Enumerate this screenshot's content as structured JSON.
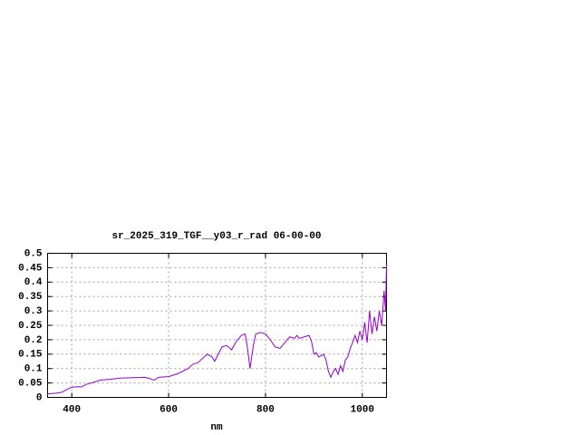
{
  "chart_data": {
    "type": "line",
    "title": "sr_2025_319_TGF__y03_r_rad 06-00-00",
    "xlabel": "nm",
    "x": [
      350,
      370,
      380,
      390,
      400,
      410,
      420,
      430,
      450,
      460,
      480,
      500,
      520,
      540,
      550,
      560,
      570,
      580,
      600,
      620,
      640,
      650,
      660,
      680,
      690,
      695,
      710,
      720,
      730,
      740,
      750,
      758,
      763,
      768,
      775,
      780,
      790,
      800,
      810,
      820,
      830,
      840,
      850,
      860,
      865,
      870,
      880,
      890,
      895,
      900,
      905,
      910,
      915,
      920,
      925,
      930,
      935,
      940,
      945,
      950,
      955,
      960,
      965,
      970,
      975,
      980,
      985,
      990,
      995,
      1000,
      1005,
      1010,
      1015,
      1020,
      1025,
      1030,
      1035,
      1040,
      1045,
      1048,
      1050
    ],
    "series": [
      {
        "name": "rad",
        "color": "#9400d3",
        "values": [
          0.012,
          0.015,
          0.018,
          0.028,
          0.035,
          0.037,
          0.036,
          0.045,
          0.055,
          0.06,
          0.063,
          0.067,
          0.068,
          0.069,
          0.07,
          0.066,
          0.06,
          0.07,
          0.072,
          0.083,
          0.1,
          0.115,
          0.12,
          0.15,
          0.14,
          0.125,
          0.175,
          0.18,
          0.165,
          0.195,
          0.215,
          0.22,
          0.17,
          0.1,
          0.18,
          0.22,
          0.225,
          0.22,
          0.2,
          0.175,
          0.17,
          0.19,
          0.21,
          0.205,
          0.215,
          0.205,
          0.21,
          0.215,
          0.195,
          0.15,
          0.155,
          0.14,
          0.145,
          0.15,
          0.13,
          0.09,
          0.07,
          0.09,
          0.1,
          0.08,
          0.11,
          0.09,
          0.13,
          0.14,
          0.17,
          0.19,
          0.215,
          0.19,
          0.23,
          0.2,
          0.26,
          0.19,
          0.3,
          0.22,
          0.28,
          0.23,
          0.3,
          0.25,
          0.37,
          0.3,
          0.46
        ]
      }
    ],
    "xlim": [
      350,
      1050
    ],
    "xticks": [
      400,
      600,
      800,
      1000
    ],
    "ylim": [
      0,
      0.5
    ],
    "yticks": [
      0,
      0.05,
      0.1,
      0.15,
      0.2,
      0.25,
      0.3,
      0.35,
      0.4,
      0.45,
      0.5
    ],
    "grid": true
  }
}
